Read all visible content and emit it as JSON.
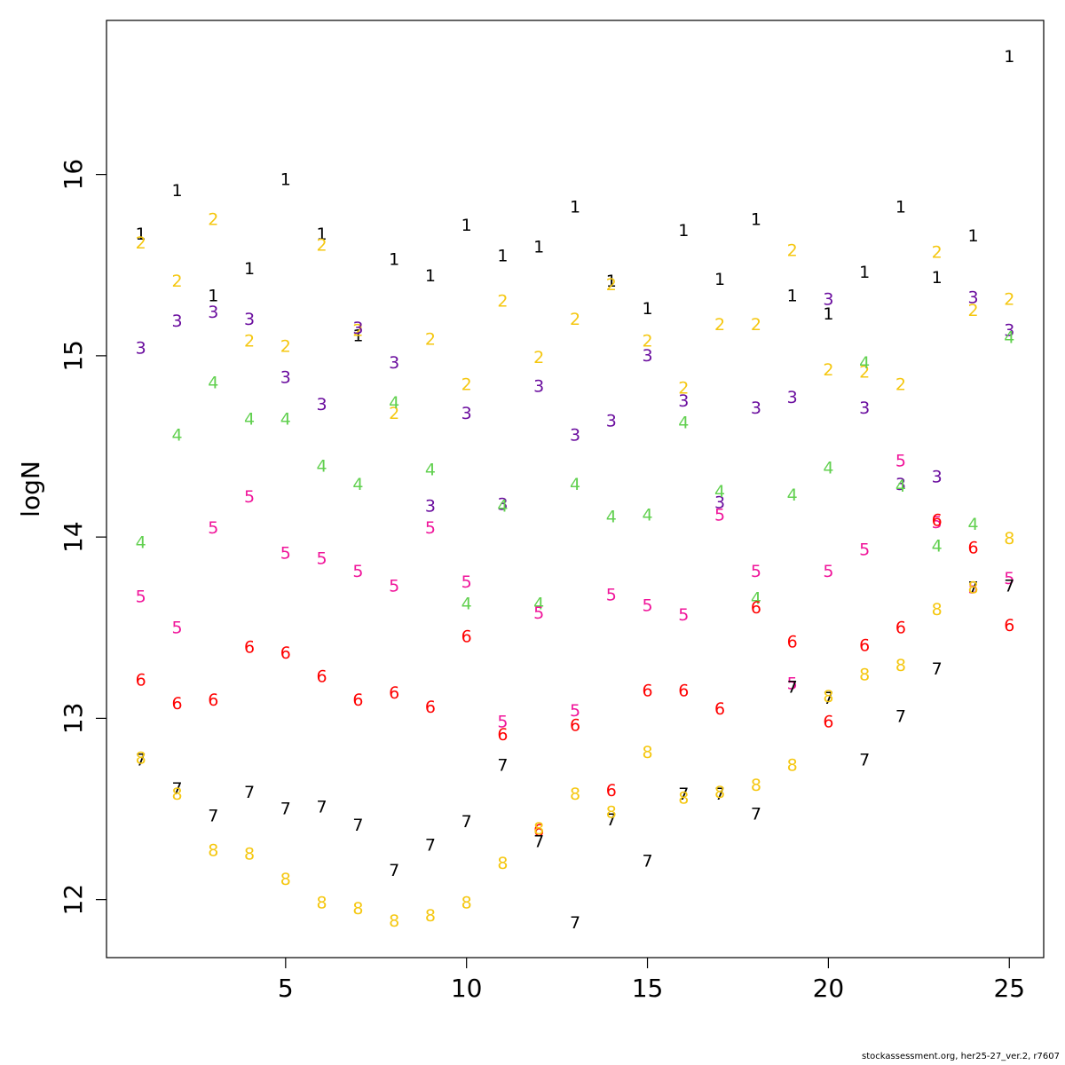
{
  "chart_data": {
    "type": "scatter",
    "title": "",
    "xlabel": "",
    "ylabel": "logN",
    "xlim": [
      0.05,
      25.95
    ],
    "ylim": [
      11.68,
      16.85
    ],
    "xticks": [
      5,
      10,
      15,
      20,
      25
    ],
    "yticks": [
      12,
      13,
      14,
      15,
      16
    ],
    "grid": false,
    "x": [
      1,
      2,
      3,
      4,
      5,
      6,
      7,
      8,
      9,
      10,
      11,
      12,
      13,
      14,
      15,
      16,
      17,
      18,
      19,
      20,
      21,
      22,
      23,
      24,
      25
    ],
    "series": [
      {
        "name": "1",
        "color": "#000000",
        "values": [
          15.67,
          15.91,
          15.33,
          15.48,
          15.97,
          15.67,
          15.11,
          15.53,
          15.44,
          15.72,
          15.55,
          15.6,
          15.82,
          15.41,
          15.26,
          15.69,
          15.42,
          15.75,
          15.33,
          15.23,
          15.46,
          15.82,
          15.43,
          15.66,
          16.65
        ]
      },
      {
        "name": "2",
        "color": "#F5C710",
        "values": [
          15.62,
          15.41,
          15.75,
          15.08,
          15.05,
          15.61,
          15.14,
          14.68,
          15.09,
          14.84,
          15.3,
          14.99,
          15.2,
          15.39,
          15.08,
          14.82,
          15.17,
          15.17,
          15.58,
          14.92,
          14.91,
          14.84,
          15.57,
          15.25,
          15.31
        ]
      },
      {
        "name": "3",
        "color": "#6A0D9E",
        "values": [
          15.04,
          15.19,
          15.24,
          15.2,
          14.88,
          14.73,
          15.15,
          14.96,
          14.17,
          14.68,
          14.18,
          14.83,
          14.56,
          14.64,
          15.0,
          14.75,
          14.19,
          14.71,
          14.77,
          15.31,
          14.71,
          14.29,
          14.33,
          15.32,
          15.14
        ]
      },
      {
        "name": "4",
        "color": "#61D04F",
        "values": [
          13.97,
          14.56,
          14.85,
          14.65,
          14.65,
          14.39,
          14.29,
          14.74,
          14.37,
          13.63,
          14.17,
          13.63,
          14.29,
          14.11,
          14.12,
          14.63,
          14.25,
          13.66,
          14.23,
          14.38,
          14.96,
          14.28,
          13.95,
          14.07,
          15.1
        ]
      },
      {
        "name": "5",
        "color": "#F0149A",
        "values": [
          13.67,
          13.5,
          14.05,
          14.22,
          13.91,
          13.88,
          13.81,
          13.73,
          14.05,
          13.75,
          12.98,
          13.58,
          13.04,
          13.68,
          13.62,
          13.57,
          14.12,
          13.81,
          13.19,
          13.81,
          13.93,
          14.42,
          14.08,
          13.72,
          13.77
        ]
      },
      {
        "name": "6",
        "color": "#FF0000",
        "values": [
          13.21,
          13.08,
          13.1,
          13.39,
          13.36,
          13.23,
          13.1,
          13.14,
          13.06,
          13.45,
          12.91,
          12.38,
          12.96,
          12.6,
          13.15,
          13.15,
          13.05,
          13.61,
          13.42,
          12.98,
          13.4,
          13.5,
          14.09,
          13.94,
          13.51
        ]
      },
      {
        "name": "7",
        "color": "#000000",
        "values": [
          12.77,
          12.61,
          12.46,
          12.59,
          12.5,
          12.51,
          12.41,
          12.16,
          12.3,
          12.43,
          12.74,
          12.32,
          11.87,
          12.44,
          12.21,
          12.58,
          12.58,
          12.47,
          13.17,
          13.11,
          12.77,
          13.01,
          13.27,
          13.72,
          13.73
        ]
      },
      {
        "name": "8",
        "color": "#F5C710",
        "values": [
          12.78,
          12.58,
          12.27,
          12.25,
          12.11,
          11.98,
          11.95,
          11.88,
          11.91,
          11.98,
          12.2,
          12.39,
          12.58,
          12.48,
          12.81,
          12.56,
          12.59,
          12.63,
          12.74,
          13.12,
          13.24,
          13.29,
          13.6,
          13.72,
          13.99
        ]
      }
    ]
  },
  "footer": "stockassessment.org, her25-27_ver.2, r7607"
}
